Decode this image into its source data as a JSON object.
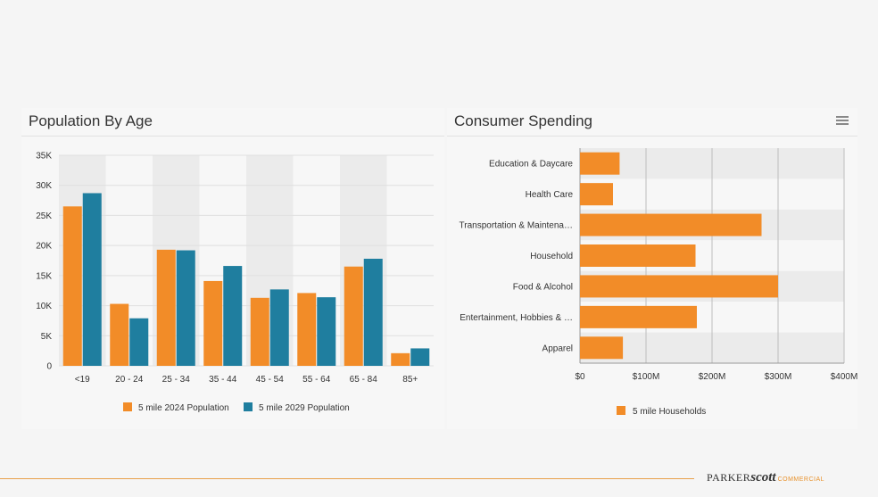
{
  "charts": {
    "left_title": "Population By Age",
    "right_title": "Consumer Spending"
  },
  "brand": {
    "part1": "PARKER",
    "part2": "scott",
    "part3": "COMMERCIAL"
  },
  "colors": {
    "orange": "#F28C28",
    "teal": "#1F7E9F",
    "accent_line": "#E8A04A"
  },
  "chart_data": [
    {
      "type": "bar",
      "title": "Population By Age",
      "categories": [
        "<19",
        "20 - 24",
        "25 - 34",
        "35 - 44",
        "45 - 54",
        "55 - 64",
        "65 - 84",
        "85+"
      ],
      "series": [
        {
          "name": "5 mile 2024 Population",
          "values": [
            26500,
            10300,
            19300,
            14100,
            11300,
            12100,
            16500,
            2100
          ]
        },
        {
          "name": "5 mile 2029 Population",
          "values": [
            28700,
            7900,
            19200,
            16600,
            12700,
            11400,
            17800,
            2900
          ]
        }
      ],
      "ylim": [
        0,
        35000
      ],
      "yticks": [
        "0",
        "5K",
        "10K",
        "15K",
        "20K",
        "25K",
        "30K",
        "35K"
      ],
      "legend": "bottom"
    },
    {
      "type": "bar",
      "orientation": "horizontal",
      "title": "Consumer Spending",
      "categories": [
        "Education & Daycare",
        "Health Care",
        "Transportation & Maintena…",
        "Household",
        "Food & Alcohol",
        "Entertainment, Hobbies & …",
        "Apparel"
      ],
      "series": [
        {
          "name": "5 mile Households",
          "values": [
            60,
            50,
            275,
            175,
            300,
            177,
            65
          ]
        }
      ],
      "xlim": [
        0,
        400
      ],
      "unit": "$M",
      "xticks": [
        "$0",
        "$100M",
        "$200M",
        "$300M",
        "$400M"
      ],
      "legend": "bottom"
    }
  ]
}
